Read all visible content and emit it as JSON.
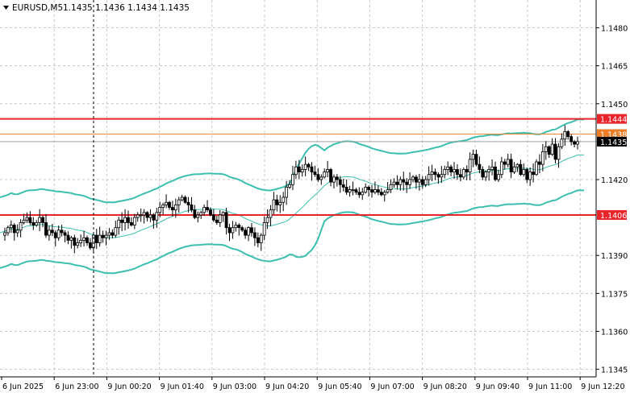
{
  "header": {
    "symbol_timeframe": "EURUSD,M5",
    "ohlc": "1.1435 1.1436 1.1434 1.1435"
  },
  "colors": {
    "background": "#ffffff",
    "grid": "#c8c8c8",
    "candle": "#000000",
    "bollinger": "#3cbfb0",
    "resistance_line": "#e8242a",
    "ask_line": "#e8843a",
    "bid_line": "#a0a0a0",
    "label_resistance": "#e8242a",
    "label_ask": "#ee7d27",
    "label_bid": "#000000"
  },
  "chart_data": {
    "type": "candlestick",
    "y_ticks": [
      "1.1480",
      "1.1465",
      "1.1450",
      "1.1420",
      "1.1390",
      "1.1375",
      "1.1360",
      "1.1345"
    ],
    "y_tick_values": [
      1.148,
      1.1465,
      1.145,
      1.142,
      1.139,
      1.1375,
      1.136,
      1.1345
    ],
    "x_ticks": [
      "6 Jun 2025",
      "6 Jun 23:00",
      "9 Jun 00:20",
      "9 Jun 01:40",
      "9 Jun 03:00",
      "9 Jun 04:20",
      "9 Jun 05:40",
      "9 Jun 07:00",
      "9 Jun 08:20",
      "9 Jun 09:40",
      "9 Jun 11:00",
      "9 Jun 12:20"
    ],
    "ylim": [
      1.1342,
      1.1491
    ],
    "grid": true,
    "price_levels": [
      {
        "label": "1.1444",
        "value": 1.1444,
        "kind": "resistance"
      },
      {
        "label": "1.1438",
        "value": 1.1438,
        "kind": "ask"
      },
      {
        "label": "1.1435",
        "value": 1.1435,
        "kind": "bid"
      },
      {
        "label": "1.1406",
        "value": 1.1406,
        "kind": "support"
      }
    ],
    "closes": [
      1.1399,
      1.1401,
      1.1402,
      1.1399,
      1.14,
      1.1403,
      1.1404,
      1.1405,
      1.1403,
      1.1402,
      1.1403,
      1.1405,
      1.1403,
      1.1398,
      1.14,
      1.1399,
      1.1397,
      1.14,
      1.1399,
      1.1398,
      1.1396,
      1.1397,
      1.1394,
      1.1395,
      1.1396,
      1.1397,
      1.1395,
      1.1393,
      1.1398,
      1.1395,
      1.1398,
      1.1397,
      1.1398,
      1.1399,
      1.1398,
      1.1401,
      1.1404,
      1.1403,
      1.1405,
      1.1403,
      1.1402,
      1.1405,
      1.1406,
      1.1406,
      1.1407,
      1.1405,
      1.1406,
      1.1404,
      1.1407,
      1.1409,
      1.141,
      1.1411,
      1.1409,
      1.1408,
      1.141,
      1.1412,
      1.1413,
      1.1411,
      1.141,
      1.1408,
      1.1405,
      1.1406,
      1.1407,
      1.1409,
      1.1408,
      1.1406,
      1.1404,
      1.1403,
      1.1406,
      1.1407,
      1.1401,
      1.1399,
      1.1401,
      1.1402,
      1.1401,
      1.14,
      1.1398,
      1.1401,
      1.1399,
      1.1397,
      1.1395,
      1.1398,
      1.1403,
      1.1405,
      1.1408,
      1.1412,
      1.141,
      1.1411,
      1.1413,
      1.1417,
      1.1418,
      1.1422,
      1.1425,
      1.1423,
      1.1424,
      1.1426,
      1.1425,
      1.1423,
      1.1422,
      1.142,
      1.1421,
      1.1423,
      1.1424,
      1.1419,
      1.1421,
      1.142,
      1.1418,
      1.1417,
      1.1415,
      1.1416,
      1.1416,
      1.1415,
      1.1414,
      1.1415,
      1.1417,
      1.1416,
      1.1415,
      1.1416,
      1.1415,
      1.1414,
      1.1415,
      1.1416,
      1.1418,
      1.1419,
      1.1418,
      1.142,
      1.1419,
      1.1418,
      1.142,
      1.1421,
      1.1419,
      1.142,
      1.1418,
      1.142,
      1.1422,
      1.1423,
      1.1422,
      1.1421,
      1.1422,
      1.1424,
      1.1425,
      1.1423,
      1.1424,
      1.1422,
      1.1421,
      1.1424,
      1.1423,
      1.1428,
      1.143,
      1.1426,
      1.1424,
      1.1421,
      1.1423,
      1.1424,
      1.1425,
      1.142,
      1.1422,
      1.1427,
      1.1426,
      1.1428,
      1.1423,
      1.1425,
      1.1426,
      1.1422,
      1.1424,
      1.142,
      1.1423,
      1.1422,
      1.1427,
      1.1426,
      1.1431,
      1.1433,
      1.143,
      1.1434,
      1.1428,
      1.1433,
      1.1436,
      1.1439,
      1.1437,
      1.1435,
      1.1434,
      1.1435
    ]
  }
}
